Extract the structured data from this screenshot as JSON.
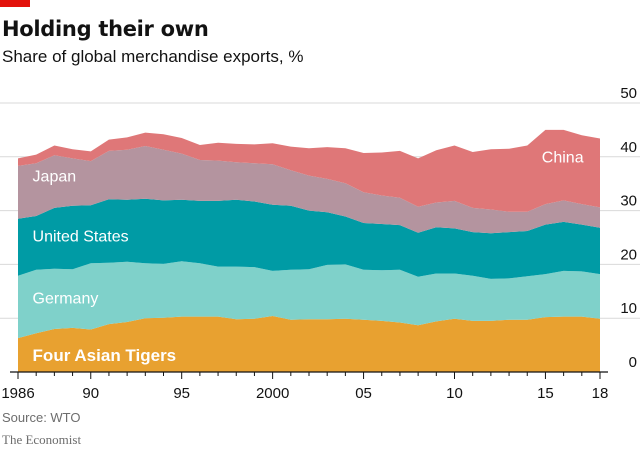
{
  "header": {
    "title": "Holding their own",
    "subtitle": "Share of global merchandise exports, %"
  },
  "footer": {
    "source": "Source: WTO",
    "brand": "The Economist"
  },
  "colors": {
    "tigers": "#e8a130",
    "germany": "#7fd1ca",
    "us": "#009ba5",
    "japan": "#b4949f",
    "china": "#df7778",
    "grid": "#d9d9d9",
    "axis": "#121212",
    "brand_red": "#e3120b"
  },
  "chart_data": {
    "type": "area",
    "stacked": true,
    "title": "Holding their own",
    "subtitle": "Share of global merchandise exports, %",
    "ylim": [
      0,
      50
    ],
    "yticks": [
      0,
      10,
      20,
      30,
      40,
      50
    ],
    "xticks": [
      {
        "year": 1986,
        "label": "1986"
      },
      {
        "year": 1990,
        "label": "90"
      },
      {
        "year": 1995,
        "label": "95"
      },
      {
        "year": 2000,
        "label": "2000"
      },
      {
        "year": 2005,
        "label": "05"
      },
      {
        "year": 2010,
        "label": "10"
      },
      {
        "year": 2015,
        "label": "15"
      },
      {
        "year": 2018,
        "label": "18"
      }
    ],
    "grid": true,
    "y_axis_side": "right",
    "x": [
      1986,
      1987,
      1988,
      1989,
      1990,
      1991,
      1992,
      1993,
      1994,
      1995,
      1996,
      1997,
      1998,
      1999,
      2000,
      2001,
      2002,
      2003,
      2004,
      2005,
      2006,
      2007,
      2008,
      2009,
      2010,
      2011,
      2012,
      2013,
      2014,
      2015,
      2016,
      2017,
      2018
    ],
    "series": [
      {
        "name": "Four Asian Tigers",
        "color_key": "tigers",
        "values": [
          6.3,
          7.2,
          8.0,
          8.2,
          7.9,
          8.9,
          9.3,
          10.0,
          10.1,
          10.3,
          10.3,
          10.3,
          9.8,
          9.9,
          10.4,
          9.7,
          9.8,
          9.8,
          9.9,
          9.7,
          9.5,
          9.2,
          8.7,
          9.4,
          9.9,
          9.5,
          9.5,
          9.7,
          9.7,
          10.2,
          10.3,
          10.3,
          9.9
        ]
      },
      {
        "name": "Germany",
        "color_key": "germany",
        "values": [
          11.6,
          11.8,
          11.2,
          10.9,
          12.3,
          11.4,
          11.2,
          10.2,
          10.0,
          10.3,
          9.9,
          9.3,
          9.8,
          9.6,
          8.4,
          9.3,
          9.3,
          10.1,
          10.1,
          9.3,
          9.4,
          9.8,
          9.0,
          8.9,
          8.4,
          8.4,
          7.8,
          7.7,
          8.1,
          8.0,
          8.5,
          8.4,
          8.3
        ]
      },
      {
        "name": "United States",
        "color_key": "us",
        "values": [
          10.6,
          10.0,
          11.3,
          11.8,
          10.8,
          11.8,
          11.5,
          12.0,
          11.8,
          11.4,
          11.6,
          12.2,
          12.4,
          12.2,
          12.3,
          11.9,
          10.9,
          9.8,
          8.9,
          8.7,
          8.6,
          8.3,
          8.2,
          8.6,
          8.4,
          8.1,
          8.5,
          8.6,
          8.4,
          9.2,
          9.1,
          8.7,
          8.6
        ]
      },
      {
        "name": "Japan",
        "color_key": "japan",
        "values": [
          9.8,
          9.8,
          9.8,
          8.8,
          8.2,
          9.0,
          9.3,
          9.8,
          9.4,
          8.6,
          7.6,
          7.5,
          7.0,
          7.1,
          7.5,
          6.6,
          6.5,
          6.2,
          6.2,
          5.7,
          5.3,
          5.1,
          4.8,
          4.6,
          5.1,
          4.5,
          4.4,
          3.8,
          3.6,
          3.8,
          4.0,
          3.8,
          3.8
        ]
      },
      {
        "name": "China",
        "color_key": "china",
        "values": [
          1.4,
          1.6,
          1.8,
          1.7,
          1.8,
          2.1,
          2.3,
          2.5,
          2.9,
          2.9,
          2.8,
          3.3,
          3.4,
          3.5,
          3.9,
          4.4,
          5.1,
          5.9,
          6.5,
          7.3,
          8.0,
          8.7,
          9.0,
          9.7,
          10.3,
          10.4,
          11.2,
          11.7,
          12.3,
          13.8,
          13.1,
          12.8,
          12.8
        ]
      }
    ],
    "series_labels": [
      {
        "text": "Four Asian Tigers",
        "bold": true,
        "color": "#ffffff",
        "at_year": 1986.8,
        "at_value": 2.0
      },
      {
        "text": "Germany",
        "bold": false,
        "color": "#ffffff",
        "at_year": 1986.8,
        "at_value": 12.7
      },
      {
        "text": "United States",
        "bold": false,
        "color": "#ffffff",
        "at_year": 1986.8,
        "at_value": 24.3
      },
      {
        "text": "Japan",
        "bold": false,
        "color": "#ffffff",
        "at_year": 1986.8,
        "at_value": 35.4
      },
      {
        "text": "China",
        "bold": false,
        "color": "#ffffff",
        "at_year": 2014.8,
        "at_value": 38.9
      }
    ]
  }
}
